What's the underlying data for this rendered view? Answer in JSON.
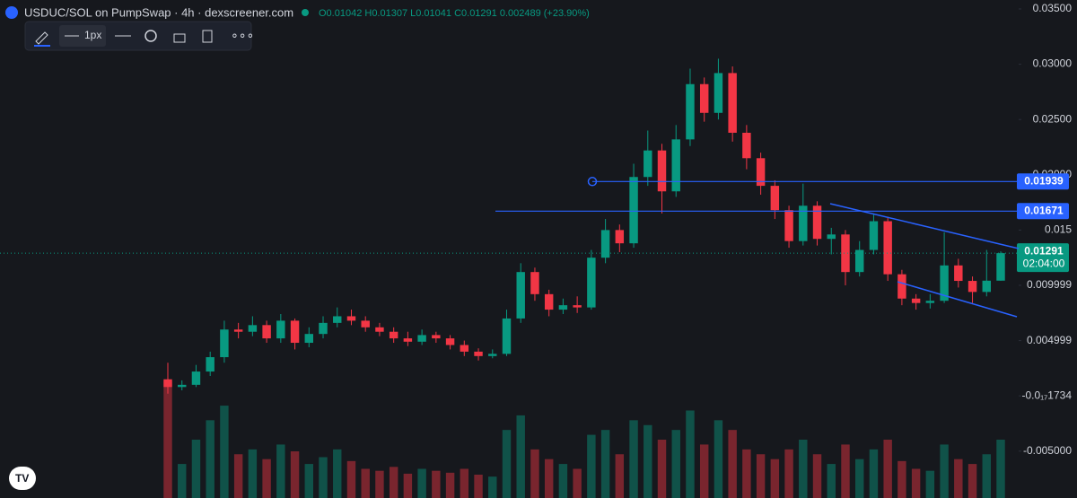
{
  "header": {
    "symbol": "USDUC/SOL on PumpSwap · 4h · dexscreener.com",
    "ohlc": "O0.01042 H0.01307 L0.01041 C0.01291 0.002489 (+23.90%)"
  },
  "toolbar": {
    "width_label": "1px"
  },
  "chart_data": {
    "type": "candlestick",
    "up_color": "#089981",
    "down_color": "#f23645",
    "ylim": [
      -0.00924,
      0.03581
    ],
    "yticks": [
      {
        "value": 0.035,
        "label": "0.03500"
      },
      {
        "value": 0.03,
        "label": "0.03000"
      },
      {
        "value": 0.025,
        "label": "0.02500"
      },
      {
        "value": 0.02,
        "label": "0.02000"
      },
      0.015,
      0.009999,
      0.004999,
      {
        "value": -1.734e-18,
        "label": "-0.0₁₇1734"
      },
      {
        "value": -0.005,
        "label": "-0.005000"
      }
    ],
    "open": [
      0.0015,
      0.0008,
      0.001,
      0.0022,
      0.0035,
      0.006,
      0.0058,
      0.0064,
      0.0052,
      0.0068,
      0.0048,
      0.0056,
      0.0066,
      0.0072,
      0.0068,
      0.0062,
      0.0058,
      0.0052,
      0.0049,
      0.0055,
      0.0052,
      0.0046,
      0.004,
      0.0036,
      0.0038,
      0.007,
      0.0112,
      0.0092,
      0.0078,
      0.0082,
      0.008,
      0.0125,
      0.015,
      0.0138,
      0.0198,
      0.0222,
      0.0185,
      0.0232,
      0.0282,
      0.0256,
      0.0292,
      0.0238,
      0.0215,
      0.019,
      0.0168,
      0.014,
      0.0172,
      0.0142,
      0.0146,
      0.0112,
      0.0132,
      0.0158,
      0.011,
      0.0088,
      0.0084,
      0.0086,
      0.0118,
      0.0104,
      0.0094,
      0.01042
    ],
    "high": [
      0.003,
      0.0014,
      0.0028,
      0.004,
      0.0068,
      0.0066,
      0.0072,
      0.0068,
      0.0074,
      0.007,
      0.0062,
      0.0072,
      0.008,
      0.0078,
      0.0072,
      0.0066,
      0.0062,
      0.0058,
      0.006,
      0.0058,
      0.0055,
      0.005,
      0.0043,
      0.0042,
      0.0078,
      0.012,
      0.0116,
      0.0096,
      0.0088,
      0.009,
      0.0132,
      0.016,
      0.0155,
      0.021,
      0.024,
      0.0228,
      0.0245,
      0.0296,
      0.0288,
      0.0305,
      0.0298,
      0.0245,
      0.022,
      0.0195,
      0.0172,
      0.0192,
      0.0176,
      0.0152,
      0.015,
      0.014,
      0.0165,
      0.0162,
      0.0114,
      0.0092,
      0.0092,
      0.0148,
      0.0124,
      0.0108,
      0.0132,
      0.01307
    ],
    "low": [
      0.0002,
      0.0005,
      0.0008,
      0.0018,
      0.003,
      0.0052,
      0.0054,
      0.0048,
      0.0048,
      0.0042,
      0.0044,
      0.0052,
      0.0062,
      0.0064,
      0.0058,
      0.0054,
      0.0048,
      0.0045,
      0.0046,
      0.0048,
      0.0042,
      0.0036,
      0.0032,
      0.0034,
      0.0036,
      0.0066,
      0.0086,
      0.0072,
      0.0074,
      0.0075,
      0.0078,
      0.012,
      0.013,
      0.0134,
      0.019,
      0.0165,
      0.018,
      0.0226,
      0.0248,
      0.025,
      0.023,
      0.0205,
      0.0182,
      0.016,
      0.0134,
      0.0136,
      0.0136,
      0.0128,
      0.01,
      0.0108,
      0.0128,
      0.0104,
      0.0082,
      0.0078,
      0.0079,
      0.0084,
      0.0098,
      0.0084,
      0.009,
      0.01041
    ],
    "close": [
      0.0008,
      0.001,
      0.0022,
      0.0035,
      0.006,
      0.0058,
      0.0064,
      0.0052,
      0.0068,
      0.0048,
      0.0056,
      0.0066,
      0.0072,
      0.0068,
      0.0062,
      0.0058,
      0.0052,
      0.0049,
      0.0055,
      0.0052,
      0.0046,
      0.004,
      0.0036,
      0.0038,
      0.007,
      0.0112,
      0.0092,
      0.0078,
      0.0082,
      0.008,
      0.0125,
      0.015,
      0.0138,
      0.0198,
      0.0222,
      0.0185,
      0.0232,
      0.0282,
      0.0256,
      0.0292,
      0.0238,
      0.0215,
      0.019,
      0.0168,
      0.014,
      0.0172,
      0.0142,
      0.0146,
      0.0112,
      0.0132,
      0.0158,
      0.011,
      0.0088,
      0.0084,
      0.0086,
      0.0118,
      0.0104,
      0.0094,
      0.01042,
      0.01291
    ],
    "volume": [
      120,
      35,
      60,
      80,
      95,
      45,
      50,
      40,
      55,
      48,
      35,
      42,
      50,
      38,
      30,
      28,
      32,
      25,
      30,
      28,
      26,
      30,
      24,
      22,
      70,
      85,
      50,
      40,
      35,
      30,
      65,
      70,
      45,
      80,
      75,
      60,
      70,
      90,
      55,
      80,
      70,
      50,
      45,
      40,
      50,
      60,
      45,
      35,
      55,
      40,
      50,
      60,
      38,
      30,
      28,
      55,
      40,
      35,
      45,
      60
    ],
    "price_lines": [
      0.01939,
      0.01671
    ],
    "last_price": 0.01291,
    "countdown": "02:04:00"
  }
}
